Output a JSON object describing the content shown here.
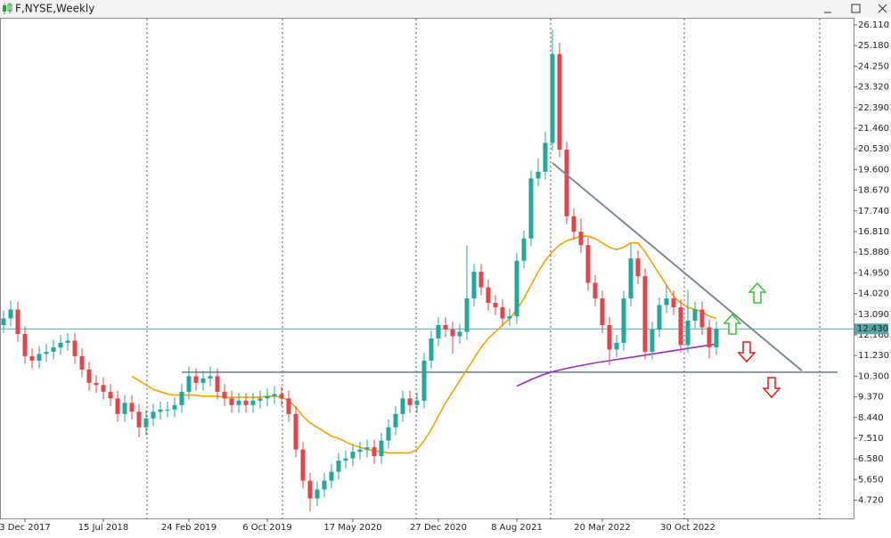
{
  "chart_data": {
    "type": "candlestick",
    "title": "F,NYSE,Weekly",
    "categories": [
      null,
      null,
      null,
      "3 Dec 2017",
      null,
      null,
      null,
      null,
      null,
      null,
      null,
      null,
      null,
      null,
      "15 Jul 2018",
      null,
      null,
      null,
      null,
      null,
      null,
      null,
      null,
      null,
      null,
      null,
      "24 Feb 2019",
      null,
      null,
      null,
      null,
      null,
      null,
      null,
      null,
      null,
      null,
      "6 Oct 2019",
      null,
      null,
      null,
      null,
      null,
      null,
      null,
      null,
      null,
      null,
      null,
      "17 May 2020",
      null,
      null,
      null,
      null,
      null,
      null,
      null,
      null,
      null,
      null,
      null,
      "27 Dec 2020",
      null,
      null,
      null,
      null,
      null,
      null,
      null,
      null,
      null,
      null,
      "8 Aug 2021",
      null,
      null,
      null,
      null,
      null,
      null,
      null,
      null,
      null,
      null,
      null,
      "20 Mar 2022",
      null,
      null,
      null,
      null,
      null,
      null,
      null,
      null,
      null,
      null,
      null,
      "30 Oct 2022",
      null,
      null,
      null,
      null
    ],
    "open": [
      12.6,
      12.9,
      13.3,
      12.2,
      11.2,
      11.0,
      11.3,
      11.4,
      11.6,
      11.8,
      11.9,
      11.2,
      10.6,
      10.0,
      9.9,
      9.6,
      9.3,
      8.6,
      9.1,
      8.7,
      8.0,
      8.4,
      8.7,
      8.8,
      8.8,
      9.0,
      9.6,
      10.3,
      10.0,
      10.2,
      10.3,
      9.6,
      9.3,
      9.0,
      9.2,
      9.0,
      9.2,
      9.3,
      9.4,
      9.5,
      9.3,
      8.6,
      7.0,
      5.6,
      4.8,
      5.2,
      5.6,
      6.0,
      6.5,
      6.6,
      6.9,
      7.0,
      7.1,
      6.7,
      7.4,
      8.0,
      8.6,
      9.3,
      9.0,
      9.2,
      11.0,
      12.0,
      12.6,
      12.4,
      12.1,
      12.3,
      13.8,
      15.0,
      14.3,
      13.6,
      13.4,
      12.9,
      13.0,
      15.5,
      16.5,
      19.2,
      19.5,
      20.8,
      24.8,
      20.5,
      17.5,
      16.8,
      16.2,
      14.5,
      13.8,
      12.6,
      11.5,
      11.8,
      13.8,
      15.6,
      14.8,
      11.4,
      12.4,
      13.5,
      13.8,
      13.4,
      11.7,
      12.8,
      13.3,
      12.5,
      11.6
    ],
    "high": [
      13.25,
      13.7,
      13.65,
      12.55,
      11.55,
      11.65,
      11.75,
      11.95,
      12.15,
      12.25,
      12.25,
      11.55,
      10.95,
      10.35,
      10.25,
      9.95,
      9.65,
      9.45,
      9.45,
      9.05,
      8.75,
      9.05,
      9.15,
      9.15,
      9.35,
      9.95,
      10.75,
      10.65,
      10.55,
      10.75,
      10.65,
      9.95,
      9.65,
      9.55,
      9.55,
      9.55,
      9.65,
      9.75,
      9.85,
      9.85,
      9.65,
      8.95,
      7.35,
      5.95,
      5.55,
      5.95,
      6.35,
      6.85,
      6.95,
      7.25,
      7.35,
      7.45,
      7.45,
      7.75,
      8.35,
      8.95,
      9.65,
      9.65,
      9.55,
      11.35,
      12.35,
      12.95,
      12.95,
      12.75,
      12.65,
      16.2,
      15.35,
      15.35,
      14.65,
      13.95,
      13.75,
      13.35,
      15.85,
      16.85,
      19.55,
      20.1,
      21.3,
      25.9,
      25.3,
      20.85,
      17.85,
      17.4,
      16.55,
      14.85,
      14.15,
      12.95,
      12.15,
      14.15,
      16.3,
      15.95,
      15.15,
      12.75,
      13.85,
      14.4,
      14.15,
      13.75,
      14.2,
      13.65,
      13.65,
      12.85,
      12.78
    ],
    "low": [
      12.25,
      12.55,
      11.85,
      10.85,
      10.65,
      10.65,
      10.95,
      11.05,
      11.25,
      11.45,
      10.85,
      10.25,
      9.65,
      9.55,
      9.25,
      8.95,
      8.25,
      8.25,
      8.35,
      7.55,
      7.65,
      8.05,
      8.35,
      8.45,
      8.45,
      8.65,
      9.25,
      9.65,
      9.65,
      9.85,
      9.25,
      8.95,
      8.65,
      8.65,
      8.65,
      8.65,
      8.85,
      8.95,
      9.05,
      8.95,
      8.25,
      6.65,
      5.25,
      4.2,
      4.45,
      4.85,
      5.25,
      5.65,
      6.15,
      6.25,
      6.55,
      6.65,
      6.35,
      6.35,
      7.05,
      7.65,
      8.25,
      8.65,
      8.65,
      8.85,
      10.65,
      11.65,
      12.05,
      11.3,
      11.75,
      11.95,
      13.45,
      13.95,
      13.25,
      13.05,
      12.55,
      12.55,
      12.65,
      15.15,
      16.15,
      18.85,
      19.15,
      20.45,
      20.15,
      17.15,
      16.45,
      15.85,
      14.15,
      13.45,
      12.25,
      10.8,
      11.15,
      11.45,
      13.45,
      14.45,
      11.05,
      11.05,
      12.05,
      13.15,
      13.05,
      11.35,
      11.35,
      12.45,
      12.15,
      11.1,
      11.25
    ],
    "close": [
      12.9,
      13.3,
      12.2,
      11.2,
      11.0,
      11.3,
      11.4,
      11.6,
      11.8,
      11.9,
      11.2,
      10.6,
      10.0,
      9.9,
      9.6,
      9.3,
      8.6,
      9.1,
      8.7,
      8.0,
      8.4,
      8.7,
      8.8,
      8.8,
      9.0,
      9.6,
      10.3,
      10.0,
      10.2,
      10.3,
      9.6,
      9.3,
      9.0,
      9.2,
      9.0,
      9.2,
      9.3,
      9.4,
      9.5,
      9.3,
      8.6,
      7.0,
      5.6,
      4.8,
      5.2,
      5.6,
      6.0,
      6.5,
      6.6,
      6.9,
      7.0,
      7.1,
      6.7,
      7.4,
      8.0,
      8.6,
      9.3,
      9.0,
      9.2,
      11.0,
      12.0,
      12.6,
      12.4,
      12.1,
      12.3,
      13.8,
      15.0,
      14.3,
      13.6,
      13.4,
      12.9,
      13.0,
      15.5,
      16.5,
      19.2,
      19.5,
      20.8,
      24.8,
      20.5,
      17.5,
      16.8,
      16.2,
      14.5,
      13.8,
      12.6,
      11.5,
      11.8,
      13.8,
      15.6,
      14.8,
      11.4,
      12.4,
      13.5,
      13.8,
      13.4,
      11.7,
      12.8,
      13.3,
      12.5,
      11.6,
      12.43
    ],
    "up_color": "#26a69a",
    "down_color": "#e0474c",
    "overlays": [
      {
        "color": "#f0a30a",
        "values": [
          null,
          null,
          null,
          null,
          null,
          null,
          null,
          null,
          null,
          null,
          null,
          null,
          null,
          null,
          null,
          null,
          null,
          null,
          10.3,
          10.1,
          9.9,
          9.7,
          9.6,
          9.5,
          9.45,
          9.45,
          9.45,
          9.45,
          9.4,
          9.4,
          9.4,
          9.35,
          9.35,
          9.35,
          9.35,
          9.35,
          9.35,
          9.4,
          9.4,
          9.35,
          9.2,
          8.9,
          8.5,
          8.2,
          8.0,
          7.8,
          7.6,
          7.5,
          7.35,
          7.2,
          7.1,
          7.0,
          6.95,
          6.9,
          6.85,
          6.85,
          6.85,
          6.85,
          7.0,
          7.4,
          7.9,
          8.5,
          9.1,
          9.6,
          10.1,
          10.6,
          11.1,
          11.6,
          12.0,
          12.3,
          12.6,
          12.9,
          13.3,
          13.8,
          14.4,
          15.0,
          15.5,
          15.9,
          16.2,
          16.4,
          16.5,
          16.6,
          16.6,
          16.5,
          16.3,
          16.1,
          16.0,
          16.1,
          16.3,
          16.3,
          15.9,
          15.4,
          14.9,
          14.4,
          13.9,
          13.6,
          13.4,
          13.3,
          13.2,
          13.0,
          12.9
        ]
      },
      {
        "color": "#9b30b8",
        "values": [
          null,
          null,
          null,
          null,
          null,
          null,
          null,
          null,
          null,
          null,
          null,
          null,
          null,
          null,
          null,
          null,
          null,
          null,
          null,
          null,
          null,
          null,
          null,
          null,
          null,
          null,
          null,
          null,
          null,
          null,
          null,
          null,
          null,
          null,
          null,
          null,
          null,
          null,
          null,
          null,
          null,
          null,
          null,
          null,
          null,
          null,
          null,
          null,
          null,
          null,
          null,
          null,
          null,
          null,
          null,
          null,
          null,
          null,
          null,
          null,
          null,
          null,
          null,
          null,
          null,
          null,
          null,
          null,
          null,
          null,
          null,
          null,
          9.85,
          10.0,
          10.15,
          10.28,
          10.4,
          10.5,
          10.58,
          10.65,
          10.72,
          10.78,
          10.84,
          10.9,
          10.95,
          11.0,
          11.05,
          11.1,
          11.15,
          11.2,
          11.25,
          11.3,
          11.35,
          11.4,
          11.45,
          11.5,
          11.55,
          11.6,
          11.65,
          11.7,
          11.75
        ]
      }
    ],
    "support": {
      "value": 10.48,
      "from": 25,
      "to": 117,
      "color": "#4d5e6e"
    },
    "trendline": {
      "from": [
        77,
        19.9
      ],
      "to": [
        112,
        10.55
      ],
      "color": "#7d8896"
    },
    "last_price": {
      "value": 12.43,
      "label": "12.430",
      "color": "#5aa6a6"
    },
    "ylim": [
      3.9,
      26.43
    ],
    "yticks": [
      {
        "value": 26.11,
        "label": "26.110"
      },
      {
        "value": 25.18,
        "label": "25.180"
      },
      {
        "value": 24.25,
        "label": "24.250"
      },
      {
        "value": 23.32,
        "label": "23.320"
      },
      {
        "value": 22.39,
        "label": "22.390"
      },
      {
        "value": 21.46,
        "label": "21.460"
      },
      {
        "value": 20.53,
        "label": "20.530"
      },
      {
        "value": 19.6,
        "label": "19.600"
      },
      {
        "value": 18.67,
        "label": "18.670"
      },
      {
        "value": 17.74,
        "label": "17.740"
      },
      {
        "value": 16.81,
        "label": "16.810"
      },
      {
        "value": 15.88,
        "label": "15.880"
      },
      {
        "value": 14.95,
        "label": "14.950"
      },
      {
        "value": 14.02,
        "label": "14.020"
      },
      {
        "value": 13.09,
        "label": "13.090"
      },
      {
        "value": 12.16,
        "label": "12.160"
      },
      {
        "value": 11.23,
        "label": "11.230"
      },
      {
        "value": 10.3,
        "label": "10.300"
      },
      {
        "value": 9.37,
        "label": "9.370"
      },
      {
        "value": 8.44,
        "label": "8.440"
      },
      {
        "value": 7.51,
        "label": "7.510"
      },
      {
        "value": 6.58,
        "label": "6.580"
      },
      {
        "value": 5.65,
        "label": "5.650"
      },
      {
        "value": 4.72,
        "label": "4.720"
      }
    ]
  }
}
